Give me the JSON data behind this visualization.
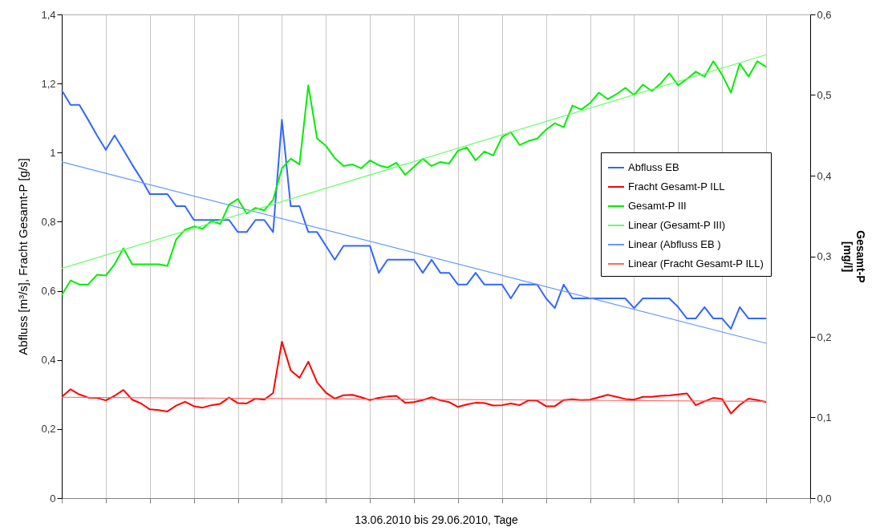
{
  "chart_data": {
    "type": "line",
    "xlabel": "13.06.2010 bis 29.06.2010, Tage",
    "ylabel": "Abfluss [m³/s], Fracht Gesamt-P [g/s]",
    "y2label": "Gesamt-P\n[mg/l]",
    "categories": [
      null,
      null,
      null,
      null,
      null,
      null,
      null,
      null,
      null,
      null,
      null,
      null,
      null,
      null,
      null,
      null,
      null,
      null,
      null,
      null,
      null,
      null,
      null,
      null,
      null,
      null,
      null,
      null,
      null,
      null,
      null,
      null,
      null,
      null,
      null,
      null,
      null,
      null,
      null,
      null,
      null,
      null,
      null,
      null,
      null,
      null,
      null,
      null,
      null,
      null,
      null,
      null,
      null,
      null,
      null,
      null,
      null,
      null,
      null,
      null,
      null,
      null,
      null,
      null,
      null,
      null,
      null,
      null,
      null,
      null,
      null,
      null,
      null,
      null,
      null,
      null,
      null,
      null,
      null,
      null,
      null,
      null,
      null,
      null,
      null,
      null
    ],
    "ylim": [
      0,
      1.4
    ],
    "yticks": [
      0,
      {
        "value": 0.2,
        "label": "0,2"
      },
      {
        "value": 0.4,
        "label": "0,4"
      },
      {
        "value": 0.6,
        "label": "0,6"
      },
      {
        "value": 0.8,
        "label": "0,8"
      },
      1,
      {
        "value": 1.2,
        "label": "1,2"
      },
      {
        "value": 1.4,
        "label": "1,4"
      }
    ],
    "y2lim": [
      0,
      0.6
    ],
    "y2ticks": [
      {
        "value": 0,
        "label": "0,0"
      },
      {
        "value": 0.1,
        "label": "0,1"
      },
      {
        "value": 0.2,
        "label": "0,2"
      },
      {
        "value": 0.3,
        "label": "0,3"
      },
      {
        "value": 0.4,
        "label": "0,4"
      },
      {
        "value": 0.5,
        "label": "0,5"
      },
      {
        "value": 0.6,
        "label": "0,6"
      }
    ],
    "grid": "x",
    "legend": "right",
    "tick_labels": "y",
    "series": [
      {
        "name": "Abfluss EB",
        "color": "#3366ff",
        "values": [
          1.18,
          1.138,
          1.138,
          1.095,
          1.05,
          1.008,
          1.05,
          1.008,
          0.965,
          0.925,
          0.88,
          0.88,
          0.88,
          0.845,
          0.845,
          0.805,
          0.805,
          0.805,
          0.805,
          0.805,
          0.77,
          0.77,
          0.805,
          0.805,
          0.77,
          1.095,
          0.845,
          0.845,
          0.77,
          0.77,
          0.73,
          0.69,
          0.73,
          0.73,
          0.73,
          0.73,
          0.652,
          0.69,
          0.69,
          0.69,
          0.69,
          0.652,
          0.69,
          0.652,
          0.652,
          0.618,
          0.618,
          0.652,
          0.618,
          0.618,
          0.618,
          0.578,
          0.618,
          0.618,
          0.618,
          0.578,
          0.55,
          0.618,
          0.578,
          0.578,
          0.578,
          0.578,
          0.578,
          0.578,
          0.578,
          0.55,
          0.578,
          0.578,
          0.578,
          0.578,
          0.553,
          0.52,
          0.52,
          0.553,
          0.52,
          0.52,
          0.49,
          0.553,
          0.52,
          0.52,
          0.52,
          null,
          null,
          null,
          null,
          null
        ]
      },
      {
        "name": "Fracht Gesamt-P ILL",
        "color": "#ff0000",
        "values": [
          0.293,
          0.315,
          0.3,
          0.291,
          0.29,
          0.283,
          0.296,
          0.313,
          0.285,
          0.274,
          0.257,
          0.255,
          0.251,
          0.268,
          0.279,
          0.266,
          0.262,
          0.269,
          0.273,
          0.291,
          0.275,
          0.274,
          0.288,
          0.285,
          0.304,
          0.453,
          0.37,
          0.348,
          0.395,
          0.335,
          0.305,
          0.288,
          0.298,
          0.299,
          0.292,
          0.284,
          0.29,
          0.294,
          0.296,
          0.276,
          0.278,
          0.284,
          0.292,
          0.283,
          0.278,
          0.264,
          0.271,
          0.276,
          0.275,
          0.268,
          0.269,
          0.274,
          0.269,
          0.283,
          0.282,
          0.266,
          0.266,
          0.284,
          0.286,
          0.284,
          0.285,
          0.292,
          0.299,
          0.293,
          0.287,
          0.285,
          0.293,
          0.293,
          0.296,
          0.297,
          0.3,
          0.303,
          0.269,
          0.28,
          0.29,
          0.287,
          0.245,
          0.27,
          0.288,
          0.284,
          0.278,
          null,
          null,
          null,
          null,
          null
        ]
      },
      {
        "name": "Gesamt-P III",
        "color": "#00ee00",
        "axis": "y2",
        "values": [
          0.252,
          0.27,
          0.265,
          0.265,
          0.277,
          0.276,
          0.29,
          0.31,
          0.29,
          0.29,
          0.29,
          0.29,
          0.288,
          0.321,
          0.333,
          0.337,
          0.334,
          0.344,
          0.34,
          0.364,
          0.371,
          0.353,
          0.36,
          0.357,
          0.37,
          0.409,
          0.421,
          0.414,
          0.512,
          0.446,
          0.437,
          0.422,
          0.412,
          0.414,
          0.409,
          0.419,
          0.413,
          0.41,
          0.416,
          0.401,
          0.411,
          0.421,
          0.412,
          0.417,
          0.415,
          0.431,
          0.435,
          0.419,
          0.43,
          0.425,
          0.448,
          0.454,
          0.438,
          0.443,
          0.446,
          0.457,
          0.465,
          0.46,
          0.487,
          0.482,
          0.49,
          0.503,
          0.495,
          0.501,
          0.509,
          0.5,
          0.513,
          0.505,
          0.514,
          0.527,
          0.512,
          0.52,
          0.529,
          0.523,
          0.542,
          0.525,
          0.503,
          0.539,
          0.523,
          0.542,
          0.535,
          null,
          null,
          null,
          null,
          null
        ]
      },
      {
        "name": "Linear (Gesamt-P III)",
        "color": "#66ff66",
        "axis": "y2",
        "values": [
          0.285,
          null,
          null,
          null,
          null,
          null,
          null,
          null,
          null,
          null,
          null,
          null,
          null,
          null,
          null,
          null,
          null,
          null,
          null,
          null,
          null,
          null,
          null,
          null,
          null,
          null,
          null,
          null,
          null,
          null,
          null,
          null,
          null,
          null,
          null,
          null,
          null,
          null,
          null,
          null,
          null,
          null,
          null,
          null,
          null,
          null,
          null,
          null,
          null,
          null,
          null,
          null,
          null,
          null,
          null,
          null,
          null,
          null,
          null,
          null,
          null,
          null,
          null,
          null,
          null,
          null,
          null,
          null,
          null,
          null,
          null,
          null,
          null,
          null,
          null,
          null,
          null,
          null,
          null,
          null,
          0.55,
          null,
          null,
          null,
          null,
          null
        ]
      },
      {
        "name": "Linear (Abfluss EB )",
        "color": "#6699ff",
        "values": [
          0.973,
          null,
          null,
          null,
          null,
          null,
          null,
          null,
          null,
          null,
          null,
          null,
          null,
          null,
          null,
          null,
          null,
          null,
          null,
          null,
          null,
          null,
          null,
          null,
          null,
          null,
          null,
          null,
          null,
          null,
          null,
          null,
          null,
          null,
          null,
          null,
          null,
          null,
          null,
          null,
          null,
          null,
          null,
          null,
          null,
          null,
          null,
          null,
          null,
          null,
          null,
          null,
          null,
          null,
          null,
          null,
          null,
          null,
          null,
          null,
          null,
          null,
          null,
          null,
          null,
          null,
          null,
          null,
          null,
          null,
          null,
          null,
          null,
          null,
          null,
          null,
          null,
          null,
          null,
          null,
          0.448,
          null,
          null,
          null,
          null,
          null
        ]
      },
      {
        "name": "Linear (Fracht Gesamt-P ILL)",
        "color": "#ff6666",
        "values": [
          0.292,
          null,
          null,
          null,
          null,
          null,
          null,
          null,
          null,
          null,
          null,
          null,
          null,
          null,
          null,
          null,
          null,
          null,
          null,
          null,
          null,
          null,
          null,
          null,
          null,
          null,
          null,
          null,
          null,
          null,
          null,
          null,
          null,
          null,
          null,
          null,
          null,
          null,
          null,
          null,
          null,
          null,
          null,
          null,
          null,
          null,
          null,
          null,
          null,
          null,
          null,
          null,
          null,
          null,
          null,
          null,
          null,
          null,
          null,
          null,
          null,
          null,
          null,
          null,
          null,
          null,
          null,
          null,
          null,
          null,
          null,
          null,
          null,
          null,
          null,
          null,
          null,
          null,
          null,
          null,
          0.28,
          null,
          null,
          null,
          null,
          null
        ]
      }
    ]
  }
}
